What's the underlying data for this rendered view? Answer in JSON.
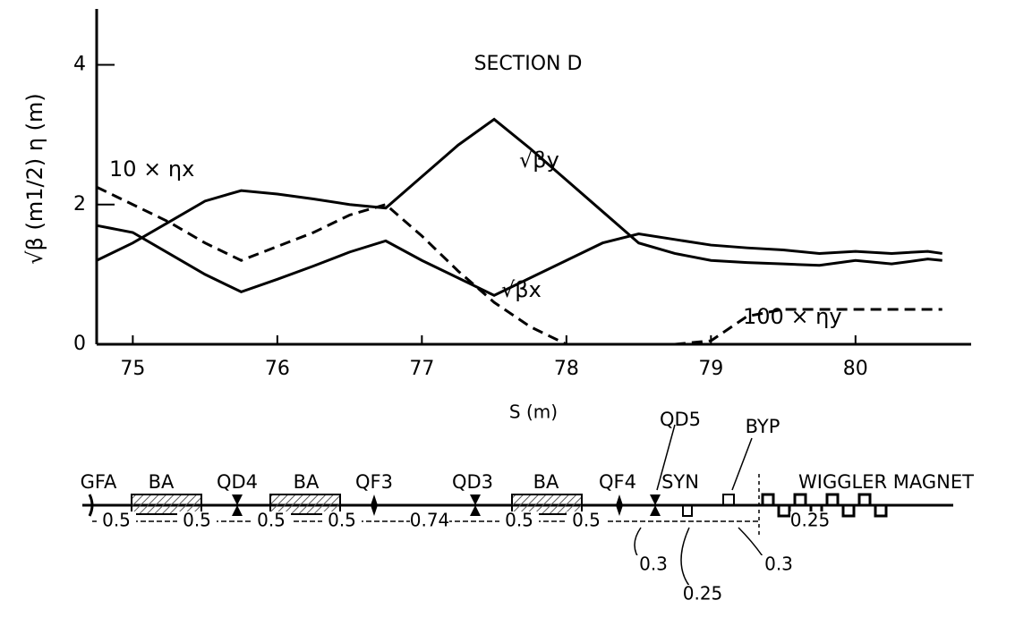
{
  "chart_data": {
    "type": "line",
    "title": "SECTION D",
    "x_label": "S (m)",
    "y_label": "√β (m1/2)  η (m)",
    "x": [
      74.75,
      75,
      75.25,
      75.5,
      75.75,
      76,
      76.25,
      76.5,
      76.75,
      77,
      77.25,
      77.5,
      77.75,
      78,
      78.25,
      78.5,
      78.75,
      79,
      79.25,
      79.5,
      79.75,
      80,
      80.25,
      80.5,
      80.6
    ],
    "series": [
      {
        "name": "√βy",
        "color": "#000000",
        "dashed": false,
        "values": [
          1.2,
          1.45,
          1.75,
          2.05,
          2.2,
          2.15,
          2.08,
          2.0,
          1.95,
          2.4,
          2.85,
          3.22,
          2.8,
          2.35,
          1.9,
          1.45,
          1.3,
          1.2,
          1.17,
          1.15,
          1.13,
          1.2,
          1.15,
          1.22,
          1.2
        ]
      },
      {
        "name": "√βx",
        "color": "#000000",
        "dashed": false,
        "values": [
          1.7,
          1.6,
          1.3,
          1.0,
          0.75,
          0.93,
          1.12,
          1.32,
          1.48,
          1.2,
          0.95,
          0.7,
          0.95,
          1.2,
          1.45,
          1.58,
          1.5,
          1.42,
          1.38,
          1.35,
          1.3,
          1.33,
          1.3,
          1.33,
          1.3
        ]
      },
      {
        "name": "10 × ηx",
        "color": "#000000",
        "dashed": true,
        "values": [
          2.25,
          2.0,
          1.75,
          1.45,
          1.2,
          1.4,
          1.6,
          1.85,
          2.0,
          1.55,
          1.05,
          0.6,
          0.25,
          0.0,
          null,
          null,
          null,
          null,
          null,
          null,
          null,
          null,
          null,
          null,
          null
        ]
      },
      {
        "name": "100 × ηy",
        "color": "#000000",
        "dashed": true,
        "values": [
          null,
          null,
          null,
          null,
          null,
          null,
          null,
          null,
          null,
          null,
          null,
          null,
          null,
          null,
          null,
          null,
          0.0,
          0.05,
          0.4,
          0.5,
          0.5,
          0.5,
          0.5,
          0.5,
          0.5
        ]
      }
    ],
    "xlim": [
      74.75,
      80.8
    ],
    "xticks": [
      75,
      76,
      77,
      78,
      79,
      80
    ],
    "ylim": [
      0,
      4.8
    ],
    "yticks": [
      0,
      2,
      4
    ],
    "grid": false
  },
  "lattice": {
    "elements": [
      "GFA",
      "BA",
      "QD4",
      "BA",
      "QF3",
      "QD3",
      "BA",
      "QF4",
      "SYN",
      "QD5",
      "BYP",
      "WIGGLER MAGNET"
    ],
    "lengths": [
      "0.5",
      "0.5",
      "0.5",
      "0.5",
      "0.74",
      "0.5",
      "0.5",
      "0.3",
      "0.25",
      "0.3",
      "0.25"
    ]
  }
}
